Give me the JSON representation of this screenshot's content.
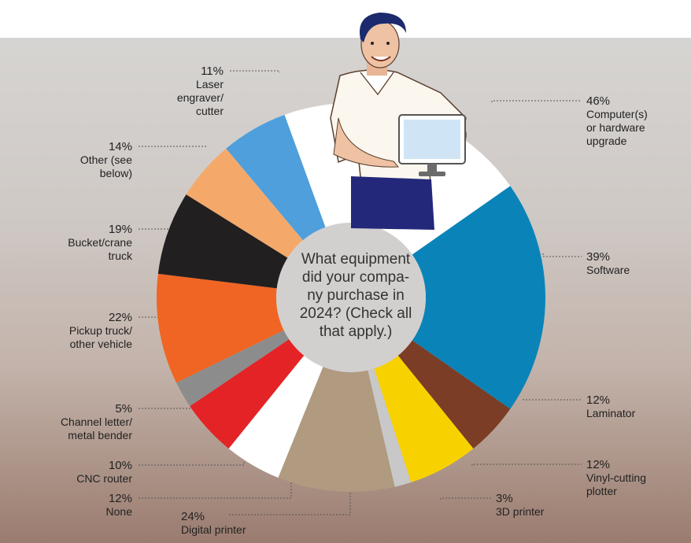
{
  "chart_data": {
    "type": "donut",
    "title": "What equipment did your company purchase in 2024? (Check all that apply.)",
    "title_lines": "What equipment\ndid your compa-\nny purchase in\n2024? (Check all\nthat apply.)",
    "slices": [
      {
        "key": "computers",
        "pct_label": "46%",
        "value": 46,
        "name": "Computer(s)\nor hardware\nupgrade",
        "color": "#ffffff"
      },
      {
        "key": "software",
        "pct_label": "39%",
        "value": 39,
        "name": "Software",
        "color": "#0a84b8"
      },
      {
        "key": "laminator",
        "pct_label": "12%",
        "value": 12,
        "name": "Laminator",
        "color": "#7b3d25"
      },
      {
        "key": "vinyl",
        "pct_label": "12%",
        "value": 12,
        "name": "Vinyl-cutting\nplotter",
        "color": "#f8d200"
      },
      {
        "key": "printer3d",
        "pct_label": "3%",
        "value": 3,
        "name": "3D printer",
        "color": "#c8c8c8"
      },
      {
        "key": "digital",
        "pct_label": "24%",
        "value": 24,
        "name": "Digital printer",
        "color": "#b09a80"
      },
      {
        "key": "none",
        "pct_label": "12%",
        "value": 12,
        "name": "None",
        "color": "#ffffff"
      },
      {
        "key": "cnc",
        "pct_label": "10%",
        "value": 10,
        "name": "CNC router",
        "color": "#e42326"
      },
      {
        "key": "channel",
        "pct_label": "5%",
        "value": 5,
        "name": "Channel letter/\nmetal bender",
        "color": "#8c8c8c"
      },
      {
        "key": "pickup",
        "pct_label": "22%",
        "value": 22,
        "name": "Pickup truck/\nother vehicle",
        "color": "#f06523"
      },
      {
        "key": "bucket",
        "pct_label": "19%",
        "value": 19,
        "name": "Bucket/crane\ntruck",
        "color": "#221f20"
      },
      {
        "key": "other",
        "pct_label": "14%",
        "value": 14,
        "name": "Other (see\nbelow)",
        "color": "#f4a96a"
      },
      {
        "key": "laser",
        "pct_label": "11%",
        "value": 11,
        "name": "Laser\nengraver/\ncutter",
        "color": "#4e9fdb"
      }
    ]
  }
}
